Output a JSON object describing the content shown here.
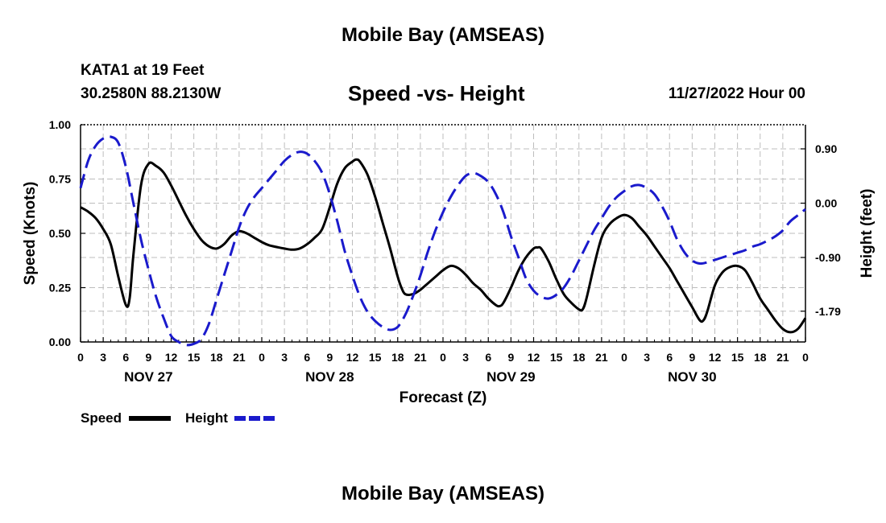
{
  "header": {
    "title": "Mobile Bay (AMSEAS)",
    "station": "KATA1 at 19 Feet",
    "coordinates": "30.2580N  88.2130W",
    "subtitle": "Speed -vs- Height",
    "datetime": "11/27/2022 Hour 00"
  },
  "footer": {
    "title": "Mobile Bay (AMSEAS)"
  },
  "chart_data": {
    "type": "line",
    "title": "Speed -vs- Height",
    "xlabel": "Forecast (Z)",
    "ylabel": "Speed (Knots)",
    "y2label": "Height (feet)",
    "xlim": [
      0,
      96
    ],
    "ylim": [
      0,
      1.0
    ],
    "y2lim": [
      -2.3,
      1.3
    ],
    "grid": true,
    "x_tick_hours": [
      0,
      3,
      6,
      9,
      12,
      15,
      18,
      21,
      24,
      27,
      30,
      33,
      36,
      39,
      42,
      45,
      48,
      51,
      54,
      57,
      60,
      63,
      66,
      69,
      72,
      75,
      78,
      81,
      84,
      87,
      90,
      93,
      96
    ],
    "x_tick_labels": [
      "0",
      "3",
      "6",
      "9",
      "12",
      "15",
      "18",
      "21",
      "0",
      "3",
      "6",
      "9",
      "12",
      "15",
      "18",
      "21",
      "0",
      "3",
      "6",
      "9",
      "12",
      "15",
      "18",
      "21",
      "0",
      "3",
      "6",
      "9",
      "12",
      "15",
      "18",
      "21",
      "0"
    ],
    "date_labels": [
      {
        "hour": 9,
        "label": "NOV 27"
      },
      {
        "hour": 33,
        "label": "NOV 28"
      },
      {
        "hour": 57,
        "label": "NOV 29"
      },
      {
        "hour": 81,
        "label": "NOV 30"
      }
    ],
    "y_ticks": [
      0.0,
      0.25,
      0.5,
      0.75,
      1.0
    ],
    "y_tick_labels": [
      "0.00",
      "0.25",
      "0.50",
      "0.75",
      "1.00"
    ],
    "y2_ticks": [
      0.9,
      0.0,
      -0.9,
      -1.79
    ],
    "y2_tick_labels": [
      "0.90",
      "0.00",
      "-0.90",
      "-1.79"
    ],
    "legend": [
      {
        "name": "Speed",
        "color": "#000000",
        "dash": "solid"
      },
      {
        "name": "Height",
        "color": "#1a1acc",
        "dash": "dashed"
      }
    ],
    "series": [
      {
        "name": "Speed",
        "axis": "left",
        "color": "#000000",
        "points": [
          [
            0,
            0.62
          ],
          [
            1,
            0.6
          ],
          [
            2,
            0.57
          ],
          [
            3,
            0.52
          ],
          [
            4,
            0.45
          ],
          [
            5,
            0.3
          ],
          [
            6,
            0.17
          ],
          [
            6.5,
            0.2
          ],
          [
            7,
            0.4
          ],
          [
            8,
            0.72
          ],
          [
            9,
            0.82
          ],
          [
            10,
            0.81
          ],
          [
            11,
            0.78
          ],
          [
            12,
            0.72
          ],
          [
            13,
            0.65
          ],
          [
            14,
            0.58
          ],
          [
            15,
            0.52
          ],
          [
            16,
            0.47
          ],
          [
            17,
            0.44
          ],
          [
            18,
            0.43
          ],
          [
            19,
            0.45
          ],
          [
            20,
            0.49
          ],
          [
            21,
            0.51
          ],
          [
            22,
            0.5
          ],
          [
            23,
            0.48
          ],
          [
            24,
            0.46
          ],
          [
            25,
            0.445
          ],
          [
            27,
            0.43
          ],
          [
            28,
            0.425
          ],
          [
            29,
            0.43
          ],
          [
            30,
            0.45
          ],
          [
            31,
            0.48
          ],
          [
            32,
            0.52
          ],
          [
            33,
            0.62
          ],
          [
            34,
            0.73
          ],
          [
            35,
            0.8
          ],
          [
            36,
            0.83
          ],
          [
            36.5,
            0.84
          ],
          [
            37,
            0.83
          ],
          [
            38,
            0.77
          ],
          [
            39,
            0.67
          ],
          [
            40,
            0.55
          ],
          [
            41,
            0.43
          ],
          [
            42,
            0.3
          ],
          [
            42.5,
            0.25
          ],
          [
            43,
            0.22
          ],
          [
            44,
            0.22
          ],
          [
            45,
            0.24
          ],
          [
            46,
            0.27
          ],
          [
            47,
            0.3
          ],
          [
            48,
            0.33
          ],
          [
            49,
            0.35
          ],
          [
            50,
            0.34
          ],
          [
            51,
            0.31
          ],
          [
            52,
            0.27
          ],
          [
            53,
            0.24
          ],
          [
            54,
            0.2
          ],
          [
            55,
            0.17
          ],
          [
            55.5,
            0.165
          ],
          [
            56,
            0.18
          ],
          [
            57,
            0.25
          ],
          [
            58,
            0.33
          ],
          [
            59,
            0.39
          ],
          [
            60,
            0.43
          ],
          [
            60.5,
            0.435
          ],
          [
            61,
            0.43
          ],
          [
            62,
            0.37
          ],
          [
            63,
            0.29
          ],
          [
            64,
            0.22
          ],
          [
            65,
            0.18
          ],
          [
            66,
            0.15
          ],
          [
            66.5,
            0.15
          ],
          [
            67,
            0.2
          ],
          [
            68,
            0.35
          ],
          [
            69,
            0.48
          ],
          [
            70,
            0.54
          ],
          [
            71,
            0.57
          ],
          [
            72,
            0.585
          ],
          [
            73,
            0.57
          ],
          [
            74,
            0.53
          ],
          [
            75,
            0.49
          ],
          [
            76,
            0.44
          ],
          [
            77,
            0.39
          ],
          [
            78,
            0.34
          ],
          [
            79,
            0.28
          ],
          [
            80,
            0.22
          ],
          [
            81,
            0.16
          ],
          [
            82,
            0.1
          ],
          [
            82.5,
            0.1
          ],
          [
            83,
            0.14
          ],
          [
            84,
            0.26
          ],
          [
            85,
            0.32
          ],
          [
            86,
            0.345
          ],
          [
            87,
            0.35
          ],
          [
            88,
            0.33
          ],
          [
            89,
            0.27
          ],
          [
            90,
            0.2
          ],
          [
            91,
            0.15
          ],
          [
            92,
            0.1
          ],
          [
            93,
            0.06
          ],
          [
            94,
            0.045
          ],
          [
            95,
            0.06
          ],
          [
            96,
            0.11
          ]
        ]
      },
      {
        "name": "Height",
        "axis": "right",
        "color": "#1a1acc",
        "points": [
          [
            0,
            0.25
          ],
          [
            1,
            0.7
          ],
          [
            2,
            0.95
          ],
          [
            3,
            1.07
          ],
          [
            4,
            1.1
          ],
          [
            5,
            1.0
          ],
          [
            6,
            0.6
          ],
          [
            7,
            0.0
          ],
          [
            8,
            -0.6
          ],
          [
            9,
            -1.1
          ],
          [
            10,
            -1.55
          ],
          [
            11,
            -1.9
          ],
          [
            12,
            -2.2
          ],
          [
            13,
            -2.3
          ],
          [
            14,
            -2.35
          ],
          [
            15,
            -2.33
          ],
          [
            16,
            -2.25
          ],
          [
            17,
            -2.0
          ],
          [
            18,
            -1.6
          ],
          [
            19,
            -1.2
          ],
          [
            20,
            -0.8
          ],
          [
            21,
            -0.4
          ],
          [
            22,
            -0.1
          ],
          [
            23,
            0.1
          ],
          [
            24,
            0.25
          ],
          [
            25,
            0.4
          ],
          [
            26,
            0.55
          ],
          [
            27,
            0.7
          ],
          [
            28,
            0.8
          ],
          [
            29,
            0.85
          ],
          [
            30,
            0.82
          ],
          [
            31,
            0.7
          ],
          [
            32,
            0.5
          ],
          [
            33,
            0.15
          ],
          [
            34,
            -0.3
          ],
          [
            35,
            -0.8
          ],
          [
            36,
            -1.2
          ],
          [
            37,
            -1.55
          ],
          [
            38,
            -1.8
          ],
          [
            39,
            -1.95
          ],
          [
            40,
            -2.05
          ],
          [
            41,
            -2.1
          ],
          [
            42,
            -2.05
          ],
          [
            43,
            -1.85
          ],
          [
            44,
            -1.55
          ],
          [
            45,
            -1.2
          ],
          [
            46,
            -0.8
          ],
          [
            47,
            -0.45
          ],
          [
            48,
            -0.15
          ],
          [
            49,
            0.1
          ],
          [
            50,
            0.3
          ],
          [
            51,
            0.45
          ],
          [
            52,
            0.5
          ],
          [
            53,
            0.45
          ],
          [
            54,
            0.35
          ],
          [
            55,
            0.15
          ],
          [
            56,
            -0.15
          ],
          [
            57,
            -0.55
          ],
          [
            58,
            -0.9
          ],
          [
            59,
            -1.25
          ],
          [
            60,
            -1.45
          ],
          [
            61,
            -1.55
          ],
          [
            62,
            -1.58
          ],
          [
            63,
            -1.52
          ],
          [
            64,
            -1.4
          ],
          [
            65,
            -1.2
          ],
          [
            66,
            -0.95
          ],
          [
            67,
            -0.7
          ],
          [
            68,
            -0.45
          ],
          [
            69,
            -0.25
          ],
          [
            70,
            -0.05
          ],
          [
            71,
            0.1
          ],
          [
            72,
            0.2
          ],
          [
            73,
            0.28
          ],
          [
            74,
            0.3
          ],
          [
            75,
            0.25
          ],
          [
            76,
            0.15
          ],
          [
            77,
            -0.05
          ],
          [
            78,
            -0.3
          ],
          [
            79,
            -0.6
          ],
          [
            80,
            -0.82
          ],
          [
            81,
            -0.95
          ],
          [
            82,
            -1.0
          ],
          [
            83,
            -0.98
          ],
          [
            84,
            -0.94
          ],
          [
            85,
            -0.9
          ],
          [
            86,
            -0.86
          ],
          [
            87,
            -0.82
          ],
          [
            88,
            -0.78
          ],
          [
            89,
            -0.72
          ],
          [
            90,
            -0.68
          ],
          [
            91,
            -0.62
          ],
          [
            92,
            -0.55
          ],
          [
            93,
            -0.45
          ],
          [
            94,
            -0.3
          ],
          [
            95,
            -0.2
          ],
          [
            96,
            -0.1
          ]
        ]
      }
    ]
  }
}
